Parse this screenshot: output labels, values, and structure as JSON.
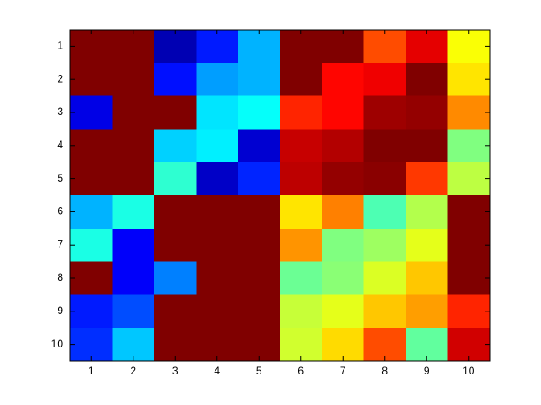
{
  "chart_data": {
    "type": "heatmap",
    "colormap": "jet",
    "clim": [
      0,
      1
    ],
    "xlim": [
      0.5,
      10.5
    ],
    "ylim": [
      0.5,
      10.5
    ],
    "y_direction": "reverse",
    "xticks": [
      1,
      2,
      3,
      4,
      5,
      6,
      7,
      8,
      9,
      10
    ],
    "yticks": [
      1,
      2,
      3,
      4,
      5,
      6,
      7,
      8,
      9,
      10
    ],
    "values": [
      [
        1,
        1,
        0.05,
        0.15,
        0.3,
        1,
        1,
        0.8,
        0.9,
        0.62
      ],
      [
        1,
        1,
        0.14,
        0.28,
        0.3,
        1,
        0.87,
        0.89,
        1,
        0.65
      ],
      [
        0.1,
        1,
        1,
        0.35,
        0.38,
        0.84,
        0.87,
        0.97,
        0.98,
        0.74
      ],
      [
        1,
        1,
        0.33,
        0.36,
        0.08,
        0.93,
        0.95,
        1,
        1,
        0.5
      ],
      [
        1,
        1,
        0.42,
        0.07,
        0.16,
        0.94,
        0.98,
        0.99,
        0.82,
        0.56
      ],
      [
        0.3,
        0.4,
        1,
        1,
        1,
        0.65,
        0.75,
        0.45,
        0.55,
        1
      ],
      [
        0.4,
        0.12,
        1,
        1,
        1,
        0.73,
        0.5,
        0.53,
        0.6,
        1
      ],
      [
        1,
        0.12,
        0.25,
        1,
        1,
        0.48,
        0.51,
        0.59,
        0.68,
        1
      ],
      [
        0.15,
        0.2,
        1,
        1,
        1,
        0.57,
        0.6,
        0.68,
        0.72,
        0.84
      ],
      [
        0.17,
        0.32,
        1,
        1,
        1,
        0.58,
        0.66,
        0.8,
        0.47,
        0.92
      ]
    ]
  }
}
